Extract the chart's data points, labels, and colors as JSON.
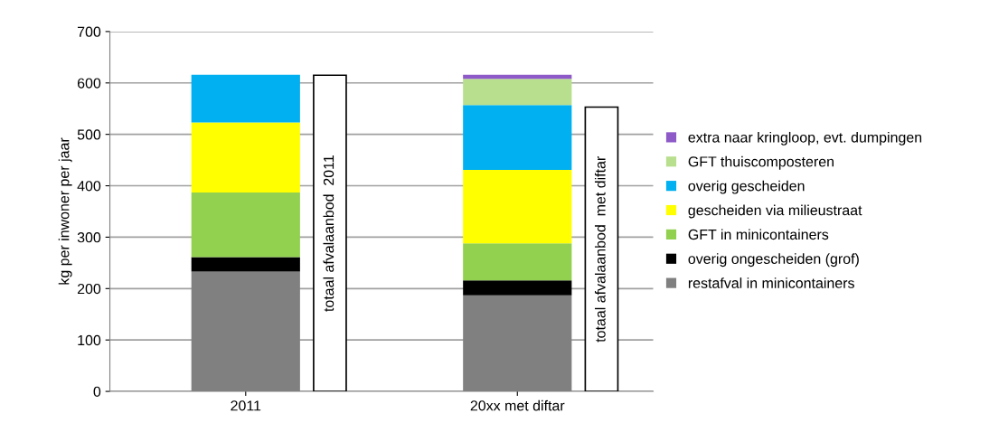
{
  "chart_data": {
    "type": "bar",
    "ylabel": "kg per inwoner per jaar",
    "categories": [
      "2011",
      "20xx met diftar"
    ],
    "ylim": [
      0,
      700
    ],
    "yticks": [
      0,
      100,
      200,
      300,
      400,
      500,
      600,
      700
    ],
    "grid": "y",
    "legend": "right",
    "series": [
      {
        "name": "restafval in minicontainers",
        "color": "#808080",
        "values": [
          233,
          187
        ],
        "base": [
          0,
          0
        ]
      },
      {
        "name": "overig ongescheiden (grof)",
        "color": "#000000",
        "values": [
          28,
          29
        ],
        "base": [
          233,
          187
        ]
      },
      {
        "name": "GFT in minicontainers",
        "color": "#92d050",
        "values": [
          126,
          72
        ],
        "base": [
          261,
          216
        ]
      },
      {
        "name": "gescheiden via milieustraat",
        "color": "#ffff00",
        "values": [
          136,
          143
        ],
        "base": [
          387,
          288
        ]
      },
      {
        "name": "overig gescheiden",
        "color": "#00b0f0",
        "values": [
          93,
          126
        ],
        "base": [
          523,
          431
        ]
      },
      {
        "name": "GFT thuiscomposteren",
        "color": "#b8df8e",
        "values": [
          null,
          51
        ],
        "base": [
          null,
          557
        ]
      },
      {
        "name": "extra naar kringloop, evt. dumpingen",
        "color": "#8e5ac8",
        "values": [
          null,
          8
        ],
        "base": [
          null,
          608
        ]
      },
      {
        "color": "#ffffff",
        "values": [
          615,
          553
        ],
        "value_labels": [
          "totaal afvalaanbod  2011",
          "totaal afvalaanbod  met diftar"
        ]
      }
    ]
  }
}
